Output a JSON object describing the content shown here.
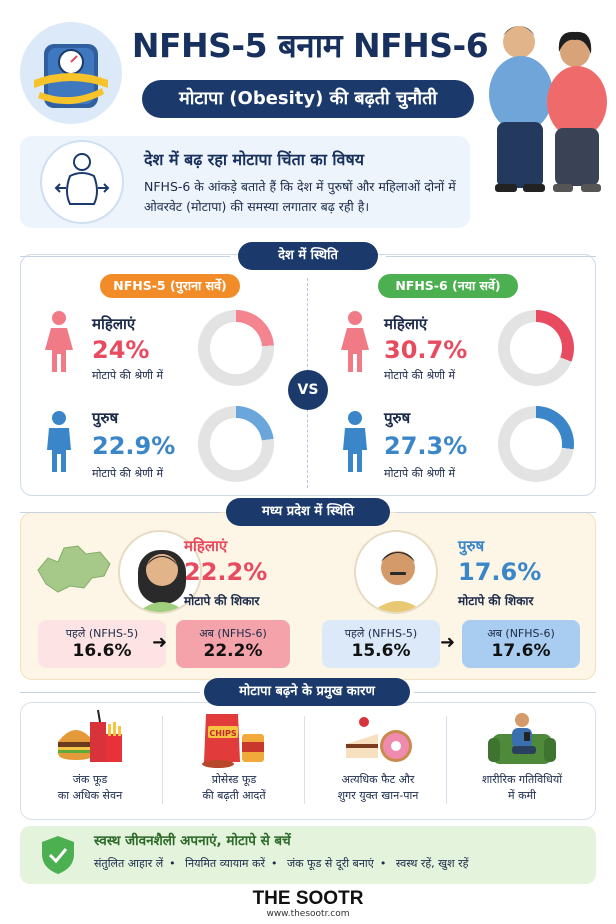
{
  "header": {
    "title": "NFHS-5 बनाम NFHS-6",
    "subtitle": "मोटापा (Obesity) की बढ़ती चुनौती"
  },
  "intro": {
    "heading": "देश में बढ़ रहा मोटापा चिंता का विषय",
    "text": "NFHS-6 के आंकड़े बताते हैं कि देश में पुरुषों और महिलाओं दोनों में ओवरवेट (मोटापा) की समस्या लगातार बढ़ रही है।"
  },
  "national": {
    "section_title": "देश में स्थिति",
    "vs_label": "VS",
    "nfhs5": {
      "label": "NFHS-5 (पुराना सर्वे)",
      "women": {
        "label": "महिलाएं",
        "value": "24%",
        "sub": "मोटापे की श्रेणी में",
        "fraction": 0.24
      },
      "men": {
        "label": "पुरुष",
        "value": "22.9%",
        "sub": "मोटापे की श्रेणी में",
        "fraction": 0.229
      }
    },
    "nfhs6": {
      "label": "NFHS-6 (नया सर्वे)",
      "women": {
        "label": "महिलाएं",
        "value": "30.7%",
        "sub": "मोटापे की श्रेणी में",
        "fraction": 0.307
      },
      "men": {
        "label": "पुरुष",
        "value": "27.3%",
        "sub": "मोटापे की श्रेणी में",
        "fraction": 0.273
      }
    }
  },
  "mp": {
    "section_title": "मध्य प्रदेश में स्थिति",
    "women": {
      "label": "महिलाएं",
      "value": "22.2%",
      "sub": "मोटापे की शिकार",
      "before_label": "पहले (NFHS-5)",
      "before_value": "16.6%",
      "after_label": "अब (NFHS-6)",
      "after_value": "22.2%"
    },
    "men": {
      "label": "पुरुष",
      "value": "17.6%",
      "sub": "मोटापे की शिकार",
      "before_label": "पहले (NFHS-5)",
      "before_value": "15.6%",
      "after_label": "अब (NFHS-6)",
      "after_value": "17.6%"
    },
    "arrow": "➜"
  },
  "causes": {
    "section_title": "मोटापा बढ़ने के प्रमुख कारण",
    "items": [
      {
        "line1": "जंक फूड",
        "line2": "का अधिक सेवन",
        "icon": "junk-food-icon"
      },
      {
        "line1": "प्रोसेस्ड फूड",
        "line2": "की बढ़ती आदतें",
        "icon": "processed-food-icon",
        "chips_text": "CHIPS"
      },
      {
        "line1": "अत्यधिक फैट और",
        "line2": "शुगर युक्त खान-पान",
        "icon": "sweets-icon"
      },
      {
        "line1": "शारीरिक गतिविधियों",
        "line2": "में कमी",
        "icon": "sedentary-icon"
      }
    ]
  },
  "advice": {
    "heading": "स्वस्थ जीवनशैली अपनाएं, मोटापे से बचें",
    "tips": [
      "संतुलित आहार लें",
      "नियमित व्यायाम करें",
      "जंक फूड से दूरी बनाएं",
      "स्वस्थ रहें, खुश रहें"
    ]
  },
  "footer": {
    "brand": "THE SOOTR",
    "url": "www.thesootr.com"
  },
  "colors": {
    "navy": "#1b3a6b",
    "women": "#e84a5f",
    "men": "#3a86c8",
    "nfhs5_orange": "#f28c28",
    "nfhs6_green": "#4caf50",
    "donut_track": "#e3e3e3"
  }
}
